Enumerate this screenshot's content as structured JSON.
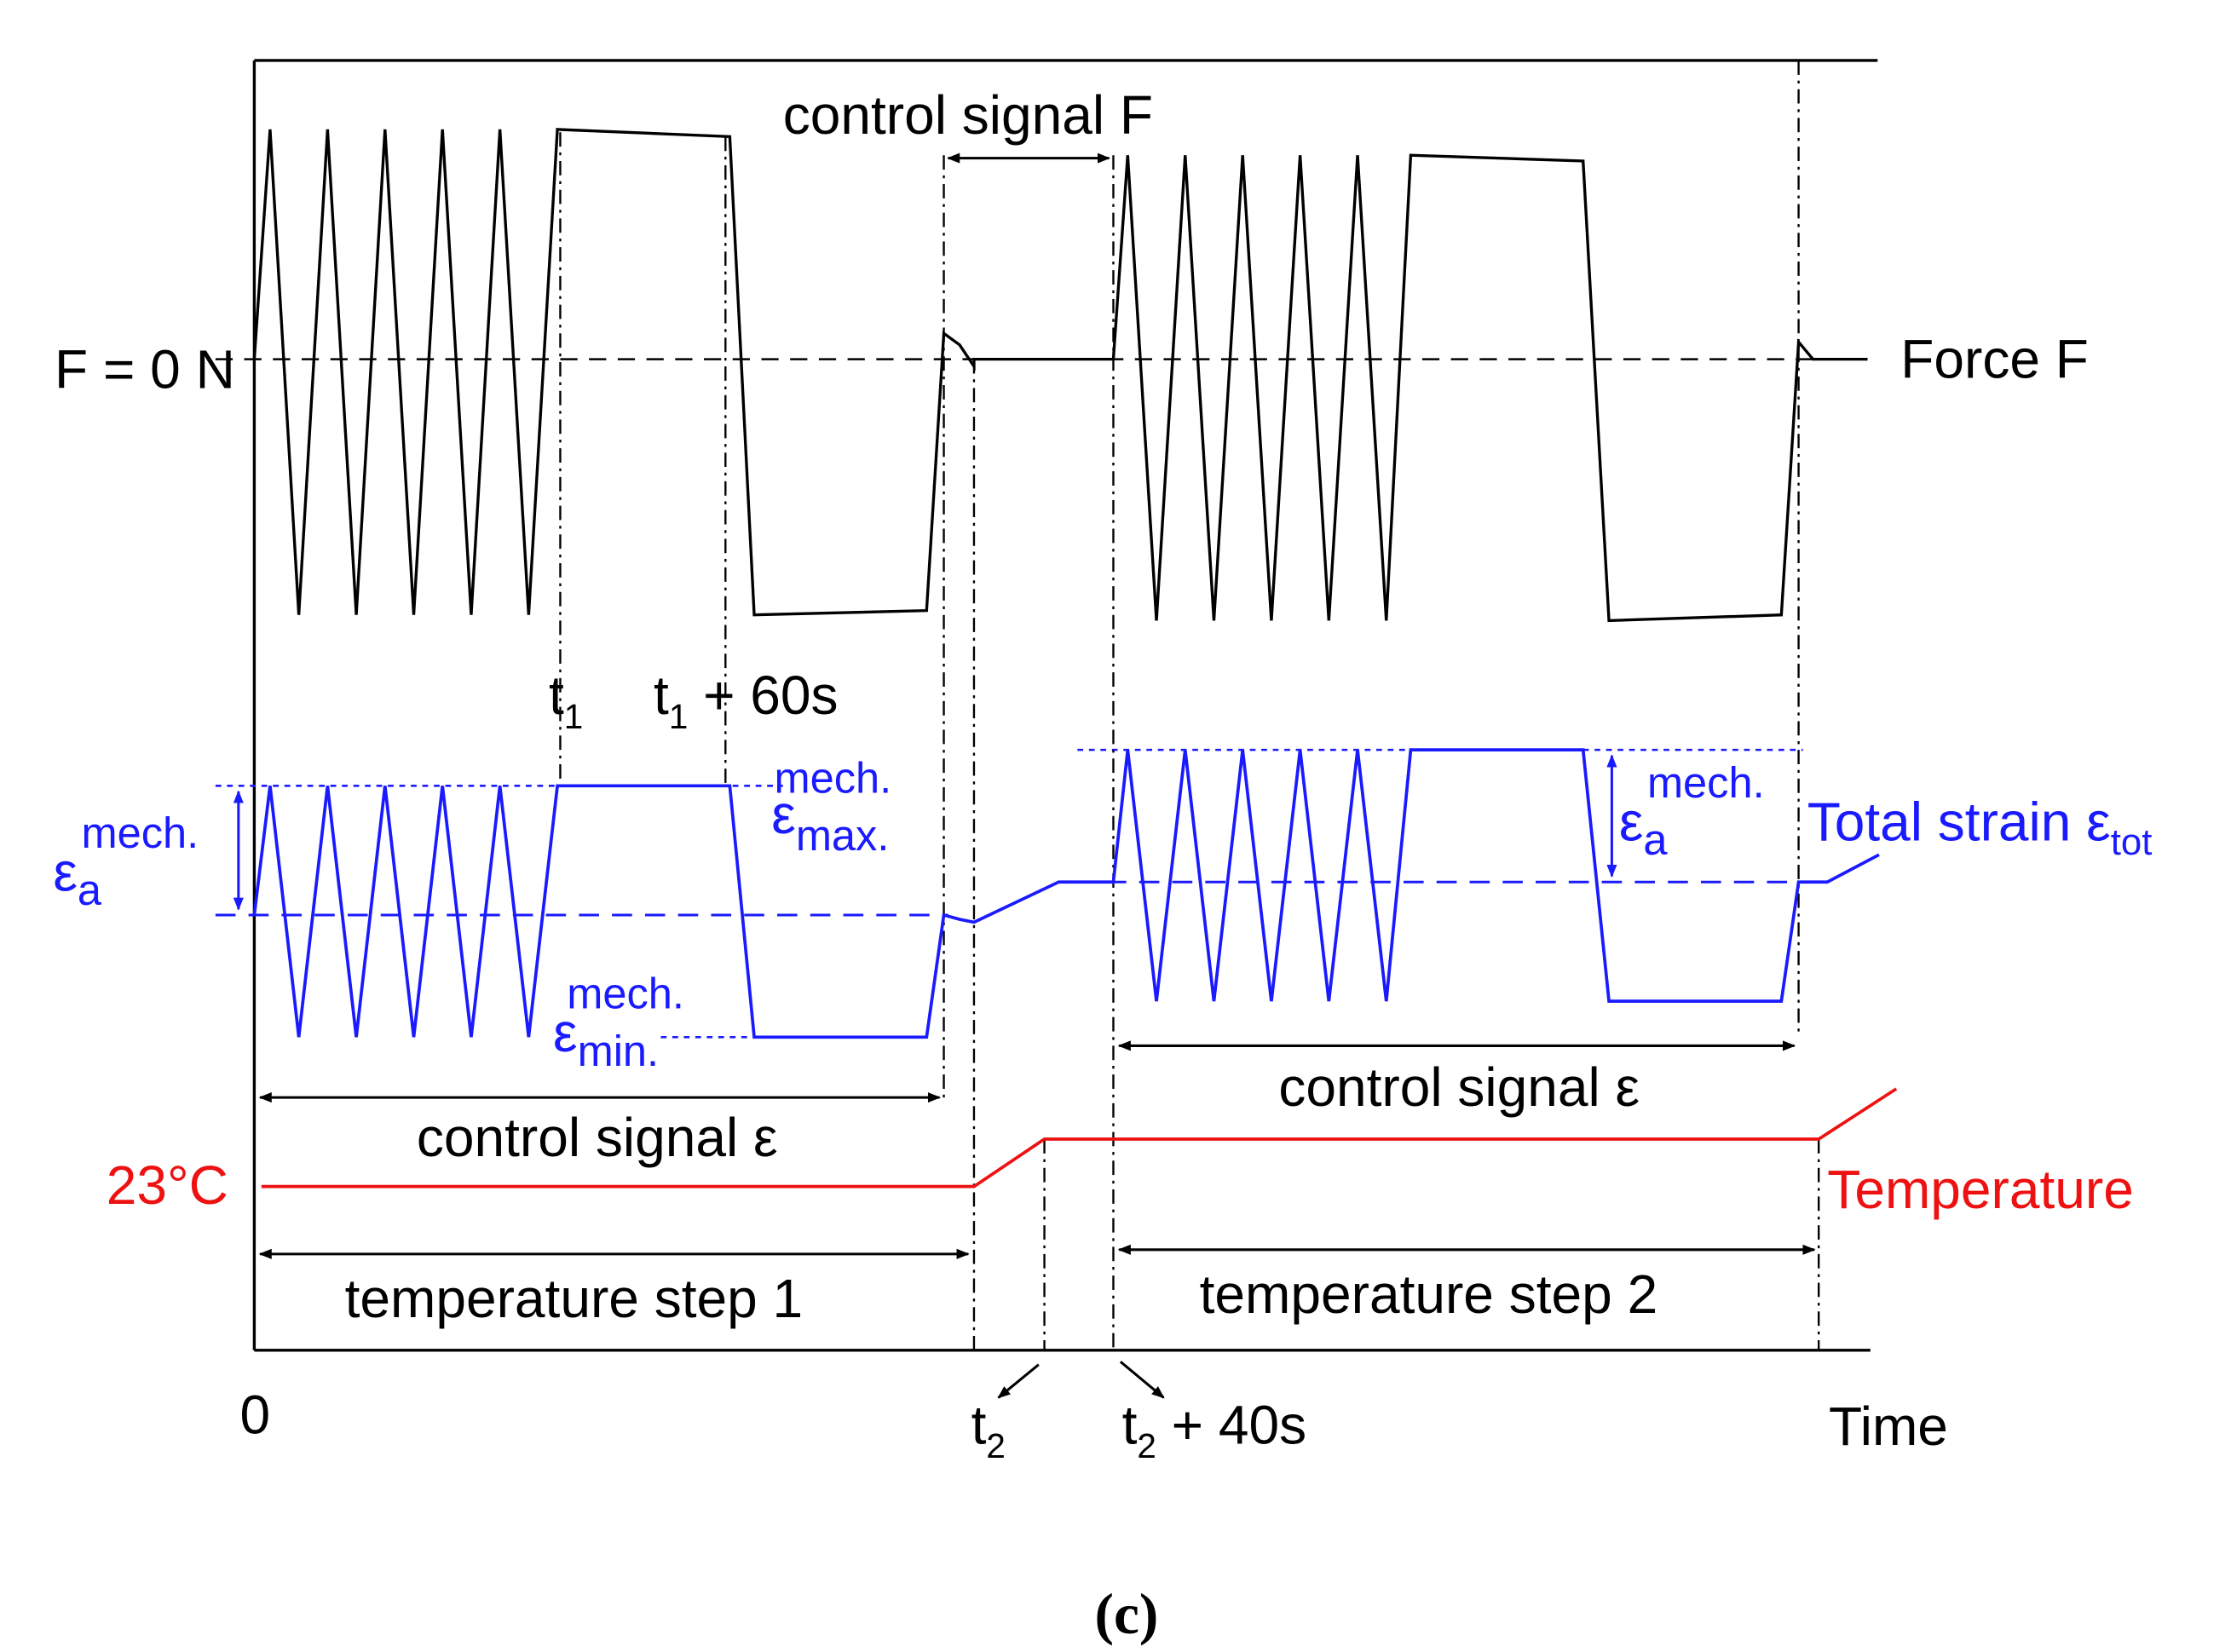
{
  "labels": {
    "control_signal_f": "control signal F",
    "f_zero": "F = 0 N",
    "force": "Force F",
    "t1": "t",
    "t1_sub": "1",
    "t1_60": "t",
    "t1_60_sub": "1",
    "t1_60_rest": " + 60s",
    "eps_a": "ε",
    "eps_a_sub": "a",
    "eps_a_sup": "mech.",
    "eps_max": "ε",
    "eps_max_sub": "max.",
    "eps_max_sup": "mech.",
    "eps_min": "ε",
    "eps_min_sub": "min.",
    "eps_min_sup": "mech.",
    "eps_a2": "ε",
    "eps_a2_sub": "a",
    "eps_a2_sup": "mech.",
    "total_strain": "Total strain ε",
    "total_strain_sub": "tot",
    "control_signal_eps_1": "control signal ε",
    "control_signal_eps_2": "control signal ε",
    "temp_23": "23°C",
    "temperature": "Temperature",
    "temp_step_1": "temperature step 1",
    "temp_step_2": "temperature step 2",
    "zero": "0",
    "t2": "t",
    "t2_sub": "2",
    "t2_40": "t",
    "t2_40_sub": "2",
    "t2_40_rest": " + 40s",
    "time": "Time",
    "caption": "(c)"
  },
  "colors": {
    "force": "#000000",
    "strain": "#1a1aff",
    "temperature": "#ee1111"
  }
}
